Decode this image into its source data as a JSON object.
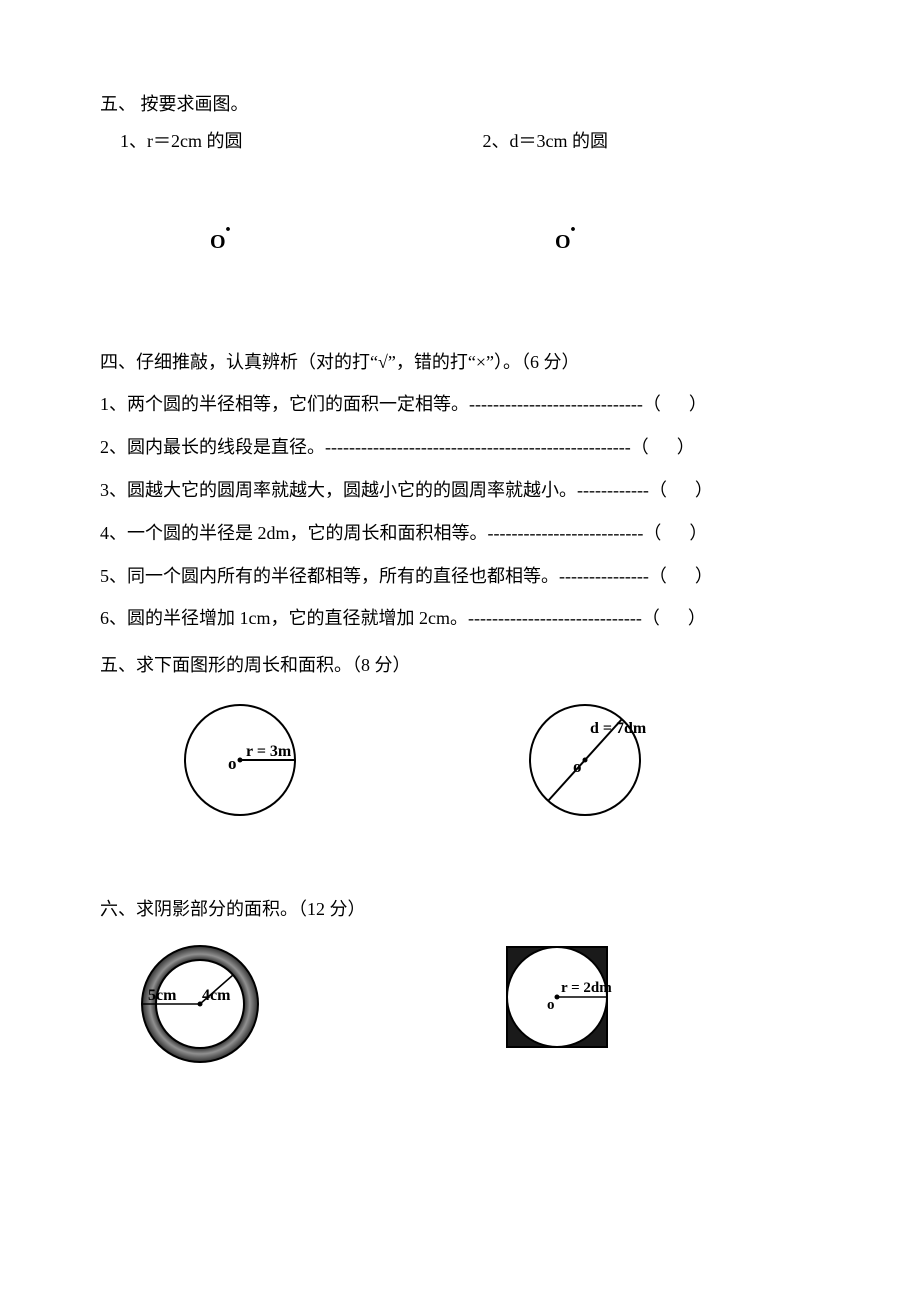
{
  "colors": {
    "text": "#000000",
    "background": "#ffffff",
    "fill_dark": "#404040",
    "fill_gradient_mid": "#808080"
  },
  "section5_draw": {
    "title": "五、 按要求画图。",
    "items": [
      {
        "label": "1、r＝2cm 的圆",
        "point_label": "O"
      },
      {
        "label": "2、d＝3cm 的圆",
        "point_label": "O"
      }
    ]
  },
  "section4_tf": {
    "title": "四、仔细推敲，认真辨析（对的打“√”，错的打“×”）。（6 分）",
    "items": [
      {
        "text": "1、两个圆的半径相等，它们的面积一定相等。",
        "dashes": "-----------------------------"
      },
      {
        "text": "2、圆内最长的线段是直径。",
        "dashes": "---------------------------------------------------"
      },
      {
        "text": "3、圆越大它的圆周率就越大，圆越小它的的圆周率就越小。",
        "dashes": "------------"
      },
      {
        "text": "4、一个圆的半径是 2dm，它的周长和面积相等。",
        "dashes": "--------------------------"
      },
      {
        "text": "5、同一个圆内所有的半径都相等，所有的直径也都相等。",
        "dashes": "---------------"
      },
      {
        "text": "6、圆的半径增加 1cm，它的直径就增加 2cm。",
        "dashes": "-----------------------------"
      }
    ],
    "paren": "（）"
  },
  "section5_calc": {
    "title": "五、求下面图形的周长和面积。（8 分）",
    "figures": [
      {
        "type": "circle_radius",
        "radius": 55,
        "center_label": "o",
        "value_label": "r = 3m",
        "stroke_width": 2,
        "stroke_color": "#000000"
      },
      {
        "type": "circle_diameter",
        "radius": 55,
        "center_label": "o",
        "value_label": "d = 7dm",
        "diameter_angle_deg": -48,
        "stroke_width": 2,
        "stroke_color": "#000000"
      }
    ]
  },
  "section6_shade": {
    "title": "六、求阴影部分的面积。（12 分）",
    "figures": [
      {
        "type": "ring",
        "outer_radius": 58,
        "inner_radius": 44,
        "outer_label": "5cm",
        "inner_label": "4cm",
        "stroke_width": 2,
        "fill_color": "#505050",
        "fill_opacity": 1
      },
      {
        "type": "square_minus_circle",
        "square_side": 100,
        "circle_radius": 50,
        "center_label": "o",
        "value_label": "r = 2dm",
        "stroke_width": 2,
        "fill_color": "#202020"
      }
    ]
  }
}
